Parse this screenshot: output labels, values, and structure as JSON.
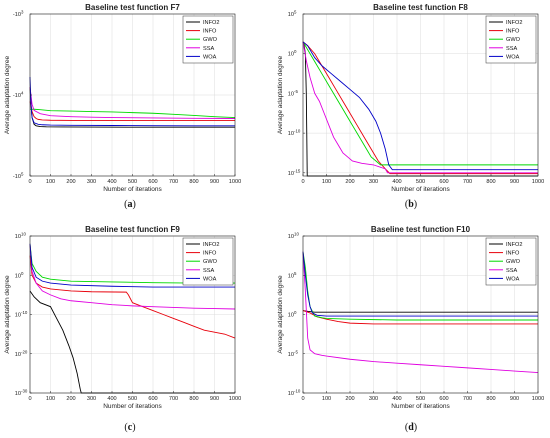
{
  "chart_data": [
    {
      "type": "line",
      "panel": "(a)",
      "title": "Baseline test function F7",
      "xlabel": "Number of iterations",
      "ylabel": "Average adaptation degree",
      "xlim": [
        0,
        1000
      ],
      "yscale": "linear",
      "ylim": [
        -100000,
        -1000
      ],
      "xticks": [
        0,
        100,
        200,
        300,
        400,
        500,
        600,
        700,
        800,
        900,
        1000
      ],
      "yticks": [
        {
          "v": -1000,
          "base": "-10",
          "exp": "3"
        },
        {
          "v": -10000,
          "base": "-10",
          "exp": "4"
        },
        {
          "v": -100000,
          "base": "-10",
          "exp": "5"
        }
      ],
      "grid": true,
      "legend_position": "top-right",
      "series": [
        {
          "name": "INFO2",
          "color": "#000000",
          "x": [
            0,
            5,
            10,
            20,
            30,
            50,
            80,
            150,
            300,
            500,
            800,
            1000
          ],
          "y": [
            -8000,
            -13000,
            -19000,
            -23000,
            -24000,
            -24500,
            -24700,
            -24800,
            -24900,
            -25000,
            -25000,
            -25000
          ]
        },
        {
          "name": "INFO",
          "color": "#e8000b",
          "x": [
            0,
            10,
            20,
            30,
            40,
            60,
            100,
            200,
            400,
            600,
            800,
            1000
          ],
          "y": [
            -12000,
            -16000,
            -18500,
            -19500,
            -20000,
            -20300,
            -20500,
            -20600,
            -20700,
            -20700,
            -20700,
            -20700
          ]
        },
        {
          "name": "GWO",
          "color": "#00d800",
          "x": [
            0,
            20,
            50,
            100,
            200,
            300,
            400,
            500,
            600,
            700,
            800,
            900,
            1000
          ],
          "y": [
            -15000,
            -15000,
            -15200,
            -15600,
            -15800,
            -16000,
            -16200,
            -16500,
            -16800,
            -17300,
            -17900,
            -18500,
            -19000
          ]
        },
        {
          "name": "SSA",
          "color": "#e000e0",
          "x": [
            0,
            10,
            20,
            50,
            100,
            200,
            300,
            400,
            600,
            800,
            1000
          ],
          "y": [
            -8000,
            -13000,
            -15500,
            -17000,
            -18000,
            -18500,
            -18800,
            -19000,
            -19200,
            -19400,
            -19500
          ]
        },
        {
          "name": "WOA",
          "color": "#0000c8",
          "x": [
            0,
            5,
            10,
            20,
            40,
            60,
            100,
            200,
            400,
            600,
            800,
            1000
          ],
          "y": [
            -6000,
            -13000,
            -19000,
            -22000,
            -23000,
            -23300,
            -23500,
            -23700,
            -23800,
            -23900,
            -24000,
            -24000
          ]
        }
      ]
    },
    {
      "type": "line",
      "panel": "(b)",
      "title": "Baseline test function F8",
      "xlabel": "Number of iterations",
      "ylabel": "Average adaptation degree",
      "xlim": [
        0,
        1000
      ],
      "yscale": "log",
      "ylim": [
        -15.4,
        5
      ],
      "xticks": [
        0,
        100,
        200,
        300,
        400,
        500,
        600,
        700,
        800,
        900,
        1000
      ],
      "yticks": [
        {
          "v": 5,
          "base": "10",
          "exp": "5"
        },
        {
          "v": 0,
          "base": "10",
          "exp": "0"
        },
        {
          "v": -5,
          "base": "10",
          "exp": "-5"
        },
        {
          "v": -10,
          "base": "10",
          "exp": "-10"
        },
        {
          "v": -15,
          "base": "10",
          "exp": "-15"
        }
      ],
      "grid": true,
      "legend_position": "top-right",
      "series": [
        {
          "name": "INFO2",
          "color": "#000000",
          "x": [
            0,
            5,
            10,
            14,
            16,
            18,
            20,
            1000
          ],
          "y": [
            1.5,
            1,
            0,
            -5,
            -10,
            -15.4,
            -15.4,
            -15.4
          ]
        },
        {
          "name": "INFO",
          "color": "#e8000b",
          "x": [
            0,
            20,
            50,
            80,
            110,
            140,
            170,
            200,
            230,
            260,
            290,
            320,
            350,
            370,
            380,
            1000
          ],
          "y": [
            1.5,
            1,
            0,
            -1.5,
            -3,
            -4.5,
            -6,
            -7.5,
            -9,
            -10.5,
            -12,
            -13.5,
            -14.5,
            -15.1,
            -15.1,
            -15.1
          ]
        },
        {
          "name": "GWO",
          "color": "#00d800",
          "x": [
            0,
            20,
            50,
            80,
            110,
            140,
            170,
            200,
            230,
            260,
            290,
            330,
            1000
          ],
          "y": [
            1.5,
            0.5,
            -1,
            -2.5,
            -4,
            -5.5,
            -7,
            -8.5,
            -10,
            -11.5,
            -13,
            -14,
            -14
          ]
        },
        {
          "name": "SSA",
          "color": "#e000e0",
          "x": [
            0,
            15,
            30,
            50,
            70,
            90,
            110,
            130,
            150,
            170,
            190,
            210,
            250,
            300,
            350,
            360,
            1000
          ],
          "y": [
            1.5,
            -1,
            -3,
            -5,
            -6,
            -7.5,
            -9,
            -10.5,
            -11.5,
            -12.5,
            -13,
            -13.5,
            -13.8,
            -14,
            -14.5,
            -15,
            -15
          ]
        },
        {
          "name": "WOA",
          "color": "#0000c8",
          "x": [
            0,
            20,
            50,
            80,
            120,
            160,
            200,
            240,
            280,
            310,
            330,
            350,
            365,
            380,
            1000
          ],
          "y": [
            1.5,
            1,
            -0.5,
            -1.5,
            -2.5,
            -3.5,
            -4.5,
            -5.5,
            -7,
            -8.5,
            -10,
            -12,
            -14,
            -14.6,
            -14.6
          ]
        }
      ]
    },
    {
      "type": "line",
      "panel": "(c)",
      "title": "Baseline test function F9",
      "xlabel": "Number of iterations",
      "ylabel": "Average adaptation degree",
      "xlim": [
        0,
        1000
      ],
      "yscale": "log",
      "ylim": [
        -30,
        10
      ],
      "xticks": [
        0,
        100,
        200,
        300,
        400,
        500,
        600,
        700,
        800,
        900,
        1000
      ],
      "yticks": [
        {
          "v": 10,
          "base": "10",
          "exp": "10"
        },
        {
          "v": 0,
          "base": "10",
          "exp": "0"
        },
        {
          "v": -10,
          "base": "10",
          "exp": "-10"
        },
        {
          "v": -20,
          "base": "10",
          "exp": "-20"
        },
        {
          "v": -30,
          "base": "10",
          "exp": "-30"
        }
      ],
      "grid": true,
      "legend_position": "top-right",
      "series": [
        {
          "name": "INFO2",
          "color": "#000000",
          "x": [
            0,
            20,
            50,
            100,
            130,
            160,
            190,
            210,
            230,
            245,
            250,
            1000
          ],
          "y": [
            -4,
            -5.5,
            -7,
            -8,
            -11,
            -14,
            -18,
            -21,
            -25,
            -29,
            -30,
            -30
          ]
        },
        {
          "name": "INFO",
          "color": "#e8000b",
          "x": [
            0,
            10,
            30,
            60,
            100,
            200,
            300,
            470,
            480,
            500,
            550,
            600,
            650,
            700,
            750,
            800,
            850,
            900,
            950,
            1000
          ],
          "y": [
            5,
            0,
            -2,
            -3,
            -3.5,
            -4,
            -4.2,
            -4.3,
            -5,
            -7,
            -8,
            -9,
            -10,
            -11,
            -12,
            -13,
            -14,
            -14.5,
            -15,
            -16
          ]
        },
        {
          "name": "GWO",
          "color": "#00d800",
          "x": [
            0,
            10,
            30,
            60,
            100,
            200,
            400,
            600,
            800,
            1000
          ],
          "y": [
            8,
            3,
            1,
            -0.5,
            -1,
            -1.5,
            -1.7,
            -1.9,
            -2,
            -2
          ]
        },
        {
          "name": "SSA",
          "color": "#e000e0",
          "x": [
            0,
            10,
            30,
            60,
            100,
            150,
            200,
            300,
            400,
            500,
            600,
            700,
            800,
            900,
            1000
          ],
          "y": [
            8,
            1,
            -2,
            -4,
            -5,
            -6,
            -6.5,
            -7,
            -7.5,
            -7.8,
            -8,
            -8.2,
            -8.4,
            -8.5,
            -8.6
          ]
        },
        {
          "name": "WOA",
          "color": "#0000c8",
          "x": [
            0,
            10,
            30,
            60,
            100,
            200,
            400,
            600,
            800,
            1000
          ],
          "y": [
            8,
            2,
            -0.5,
            -1.5,
            -2,
            -2.5,
            -2.8,
            -3,
            -3,
            -3
          ]
        }
      ]
    },
    {
      "type": "line",
      "panel": "(d)",
      "title": "Baseline test function F10",
      "xlabel": "Number of iterations",
      "ylabel": "Average adaptation degree",
      "xlim": [
        0,
        1000
      ],
      "yscale": "log",
      "ylim": [
        -10,
        10
      ],
      "xticks": [
        0,
        100,
        200,
        300,
        400,
        500,
        600,
        700,
        800,
        900,
        1000
      ],
      "yticks": [
        {
          "v": 10,
          "base": "10",
          "exp": "10"
        },
        {
          "v": 5,
          "base": "10",
          "exp": "5"
        },
        {
          "v": 0,
          "base": "10",
          "exp": "0"
        },
        {
          "v": -5,
          "base": "10",
          "exp": "-5"
        },
        {
          "v": -10,
          "base": "10",
          "exp": "-10"
        }
      ],
      "grid": true,
      "legend_position": "top-right",
      "series": [
        {
          "name": "INFO2",
          "color": "#000000",
          "x": [
            0,
            20,
            50,
            100,
            150,
            200,
            300,
            500,
            700,
            1000
          ],
          "y": [
            0.5,
            0.4,
            0.3,
            0.3,
            0.3,
            0.3,
            0.3,
            0.3,
            0.3,
            0.3
          ]
        },
        {
          "name": "INFO",
          "color": "#e8000b",
          "x": [
            0,
            10,
            30,
            60,
            100,
            150,
            200,
            300,
            500,
            700,
            1000
          ],
          "y": [
            0.5,
            0.4,
            0.2,
            -0.3,
            -0.6,
            -0.9,
            -1.1,
            -1.2,
            -1.2,
            -1.2,
            -1.2
          ]
        },
        {
          "name": "GWO",
          "color": "#00d800",
          "x": [
            0,
            10,
            20,
            30,
            50,
            80,
            100,
            200,
            400,
            600,
            800,
            1000
          ],
          "y": [
            8,
            6,
            3,
            1,
            -0.2,
            -0.4,
            -0.5,
            -0.6,
            -0.7,
            -0.7,
            -0.7,
            -0.7
          ]
        },
        {
          "name": "SSA",
          "color": "#e000e0",
          "x": [
            0,
            10,
            20,
            30,
            50,
            80,
            100,
            200,
            300,
            400,
            500,
            600,
            700,
            800,
            900,
            1000
          ],
          "y": [
            8,
            3,
            -3,
            -4.5,
            -5,
            -5.2,
            -5.3,
            -5.7,
            -6,
            -6.2,
            -6.4,
            -6.6,
            -6.8,
            -7,
            -7.2,
            -7.4
          ]
        },
        {
          "name": "WOA",
          "color": "#0000c8",
          "x": [
            0,
            10,
            20,
            30,
            40,
            60,
            100,
            200,
            400,
            600,
            800,
            1000
          ],
          "y": [
            8,
            5,
            2.5,
            1,
            0.2,
            -0.1,
            -0.2,
            -0.2,
            -0.2,
            -0.2,
            -0.2,
            -0.2
          ]
        }
      ]
    }
  ]
}
